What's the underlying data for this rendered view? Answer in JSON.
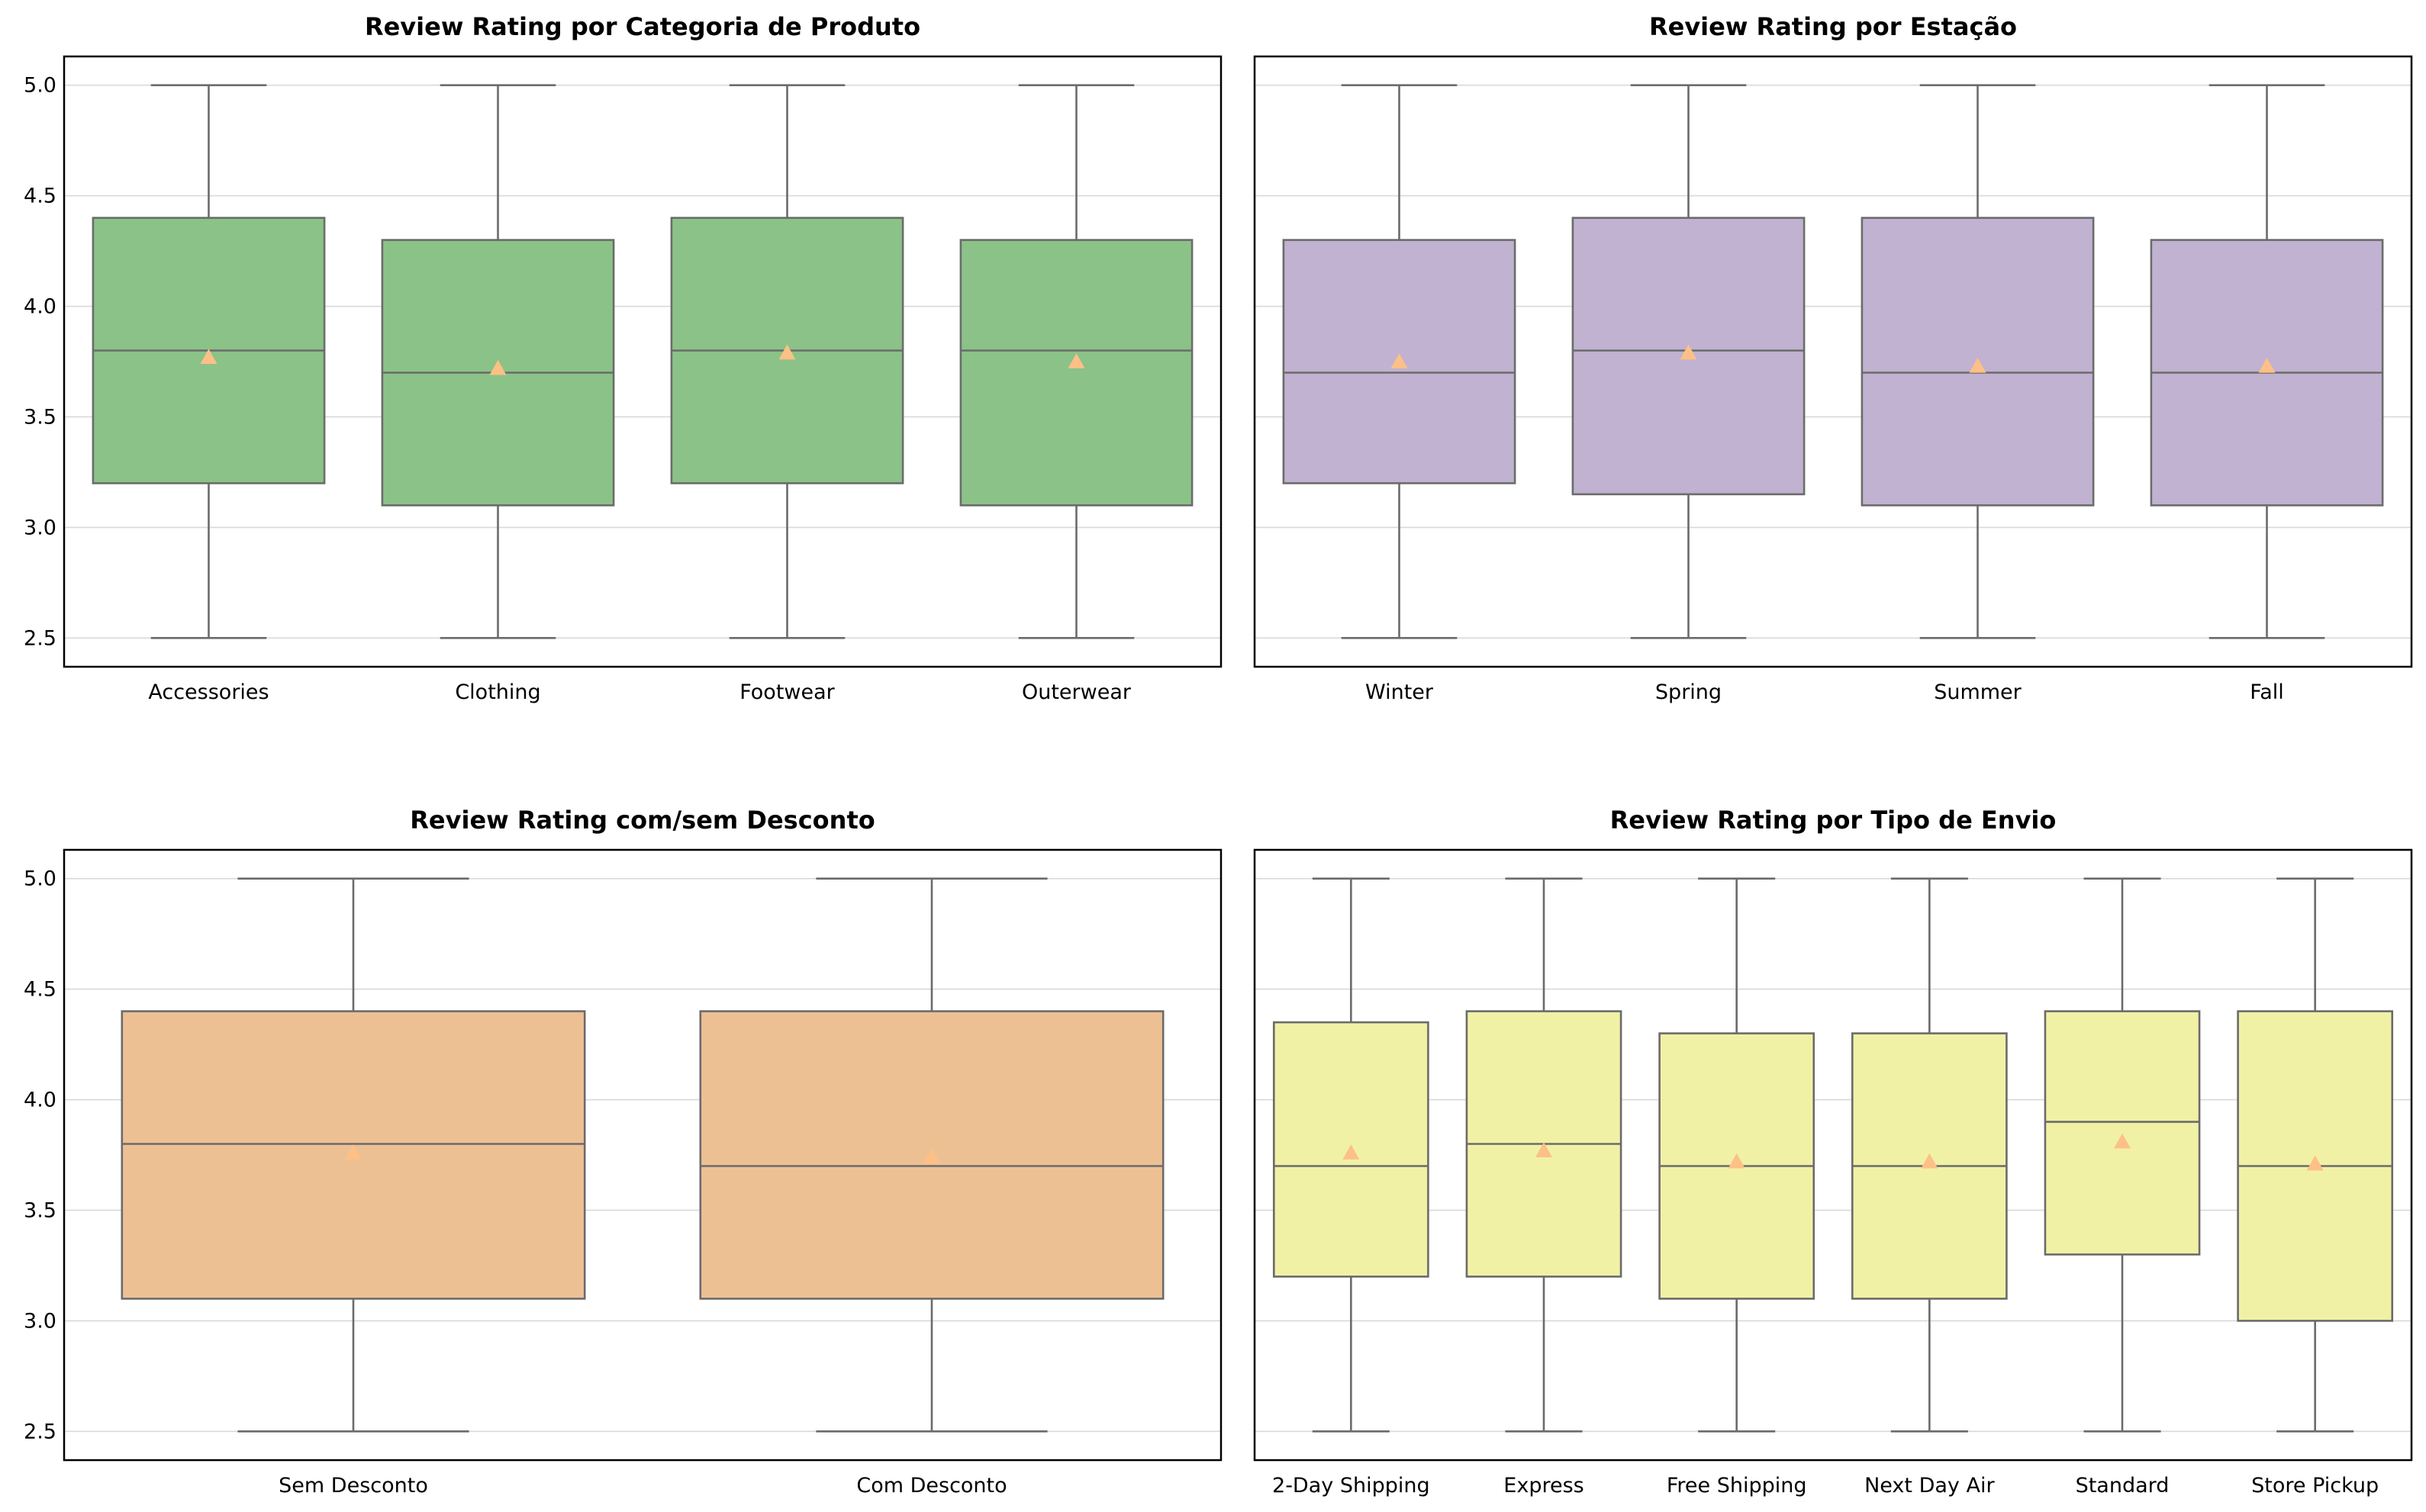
{
  "chart_data": [
    {
      "type": "box",
      "title": "Review Rating por Categoria de Produto",
      "xlabel": "",
      "ylabel": "",
      "ylim": [
        2.37,
        5.13
      ],
      "yticks": [
        2.5,
        3.0,
        3.5,
        4.0,
        4.5,
        5.0
      ],
      "ytick_labels": [
        "2.5",
        "3.0",
        "3.5",
        "4.0",
        "4.5",
        "5.0"
      ],
      "show_ytick_labels": true,
      "grid": true,
      "color": "#8bc287",
      "mean_color": "#fdc086",
      "categories": [
        "Accessories",
        "Clothing",
        "Footwear",
        "Outerwear"
      ],
      "boxes": [
        {
          "min": 2.5,
          "q1": 3.2,
          "median": 3.8,
          "q3": 4.4,
          "max": 5.0,
          "mean": 3.77
        },
        {
          "min": 2.5,
          "q1": 3.1,
          "median": 3.7,
          "q3": 4.3,
          "max": 5.0,
          "mean": 3.72
        },
        {
          "min": 2.5,
          "q1": 3.2,
          "median": 3.8,
          "q3": 4.4,
          "max": 5.0,
          "mean": 3.79
        },
        {
          "min": 2.5,
          "q1": 3.1,
          "median": 3.8,
          "q3": 4.3,
          "max": 5.0,
          "mean": 3.75
        }
      ]
    },
    {
      "type": "box",
      "title": "Review Rating por Estação",
      "xlabel": "",
      "ylabel": "",
      "ylim": [
        2.37,
        5.13
      ],
      "yticks": [
        2.5,
        3.0,
        3.5,
        4.0,
        4.5,
        5.0
      ],
      "ytick_labels": [
        "2.5",
        "3.0",
        "3.5",
        "4.0",
        "4.5",
        "5.0"
      ],
      "show_ytick_labels": false,
      "grid": true,
      "color": "#c0b2d0",
      "mean_color": "#fdc086",
      "categories": [
        "Winter",
        "Spring",
        "Summer",
        "Fall"
      ],
      "boxes": [
        {
          "min": 2.5,
          "q1": 3.2,
          "median": 3.7,
          "q3": 4.3,
          "max": 5.0,
          "mean": 3.75
        },
        {
          "min": 2.5,
          "q1": 3.15,
          "median": 3.8,
          "q3": 4.4,
          "max": 5.0,
          "mean": 3.79
        },
        {
          "min": 2.5,
          "q1": 3.1,
          "median": 3.7,
          "q3": 4.4,
          "max": 5.0,
          "mean": 3.73
        },
        {
          "min": 2.5,
          "q1": 3.1,
          "median": 3.7,
          "q3": 4.3,
          "max": 5.0,
          "mean": 3.73
        }
      ]
    },
    {
      "type": "box",
      "title": "Review Rating com/sem Desconto",
      "xlabel": "",
      "ylabel": "",
      "ylim": [
        2.37,
        5.13
      ],
      "yticks": [
        2.5,
        3.0,
        3.5,
        4.0,
        4.5,
        5.0
      ],
      "ytick_labels": [
        "2.5",
        "3.0",
        "3.5",
        "4.0",
        "4.5",
        "5.0"
      ],
      "show_ytick_labels": true,
      "grid": true,
      "color": "#edc094",
      "mean_color": "#fdc086",
      "categories": [
        "Sem Desconto",
        "Com Desconto"
      ],
      "boxes": [
        {
          "min": 2.5,
          "q1": 3.1,
          "median": 3.8,
          "q3": 4.4,
          "max": 5.0,
          "mean": 3.76
        },
        {
          "min": 2.5,
          "q1": 3.1,
          "median": 3.7,
          "q3": 4.4,
          "max": 5.0,
          "mean": 3.74
        }
      ]
    },
    {
      "type": "box",
      "title": "Review Rating por Tipo de Envio",
      "xlabel": "",
      "ylabel": "",
      "ylim": [
        2.37,
        5.13
      ],
      "yticks": [
        2.5,
        3.0,
        3.5,
        4.0,
        4.5,
        5.0
      ],
      "ytick_labels": [
        "2.5",
        "3.0",
        "3.5",
        "4.0",
        "4.5",
        "5.0"
      ],
      "show_ytick_labels": false,
      "grid": true,
      "color": "#f1f1a6",
      "mean_color": "#fdc086",
      "categories": [
        "2-Day Shipping",
        "Express",
        "Free Shipping",
        "Next Day Air",
        "Standard",
        "Store Pickup"
      ],
      "boxes": [
        {
          "min": 2.5,
          "q1": 3.2,
          "median": 3.7,
          "q3": 4.35,
          "max": 5.0,
          "mean": 3.76
        },
        {
          "min": 2.5,
          "q1": 3.2,
          "median": 3.8,
          "q3": 4.4,
          "max": 5.0,
          "mean": 3.77
        },
        {
          "min": 2.5,
          "q1": 3.1,
          "median": 3.7,
          "q3": 4.3,
          "max": 5.0,
          "mean": 3.72
        },
        {
          "min": 2.5,
          "q1": 3.1,
          "median": 3.7,
          "q3": 4.3,
          "max": 5.0,
          "mean": 3.72
        },
        {
          "min": 2.5,
          "q1": 3.3,
          "median": 3.9,
          "q3": 4.4,
          "max": 5.0,
          "mean": 3.81
        },
        {
          "min": 2.5,
          "q1": 3.0,
          "median": 3.7,
          "q3": 4.4,
          "max": 5.0,
          "mean": 3.71
        }
      ]
    }
  ]
}
